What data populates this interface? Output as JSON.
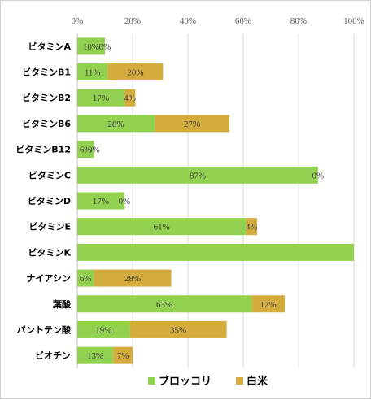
{
  "chart_data": {
    "type": "bar",
    "orientation": "horizontal",
    "stacked": true,
    "categories": [
      "ビタミンA",
      "ビタミンB1",
      "ビタミンB2",
      "ビタミンB6",
      "ビタミンB12",
      "ビタミンC",
      "ビタミンD",
      "ビタミンE",
      "ビタミンK",
      "ナイアシン",
      "葉酸",
      "パントテン酸",
      "ビオチン"
    ],
    "series": [
      {
        "name": "ブロッコリ",
        "color": "#92D050",
        "values": [
          10,
          11,
          17,
          28,
          6,
          87,
          17,
          61,
          100,
          6,
          63,
          19,
          13
        ],
        "labels": [
          "10%",
          "11%",
          "17%",
          "28%",
          "6%",
          "87%",
          "17%",
          "61%",
          "",
          "6%",
          "63%",
          "19%",
          "13%"
        ]
      },
      {
        "name": "白米",
        "color": "#D4AC3E",
        "values": [
          0,
          20,
          4,
          27,
          0,
          0,
          0,
          4,
          0,
          28,
          12,
          35,
          7
        ],
        "labels": [
          "0%",
          "20%",
          "4%",
          "27%",
          "0%",
          "0%",
          "0%",
          "4%",
          "",
          "28%",
          "12%",
          "35%",
          "7%"
        ]
      }
    ],
    "x_ticks": [
      "0%",
      "20%",
      "40%",
      "60%",
      "80%",
      "100%"
    ],
    "xlim": [
      0,
      100
    ],
    "x_axis_position": "top",
    "grid": true,
    "legend_position": "bottom"
  }
}
